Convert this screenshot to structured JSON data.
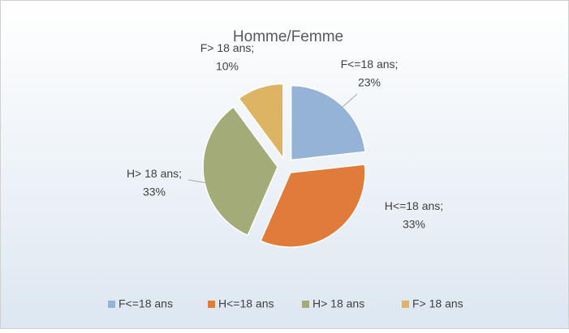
{
  "chart_data": {
    "type": "pie",
    "title": "Homme/Femme",
    "categories": [
      "F<=18 ans",
      "H<=18 ans",
      "H> 18 ans",
      "F> 18 ans"
    ],
    "values": [
      23,
      33,
      33,
      10
    ],
    "value_labels": [
      "23%",
      "33%",
      "33%",
      "10%"
    ],
    "label_separator": ";",
    "colors": [
      "#95b3d7",
      "#e07b39",
      "#a3ab78",
      "#dcb464"
    ],
    "legend": "bottom"
  }
}
